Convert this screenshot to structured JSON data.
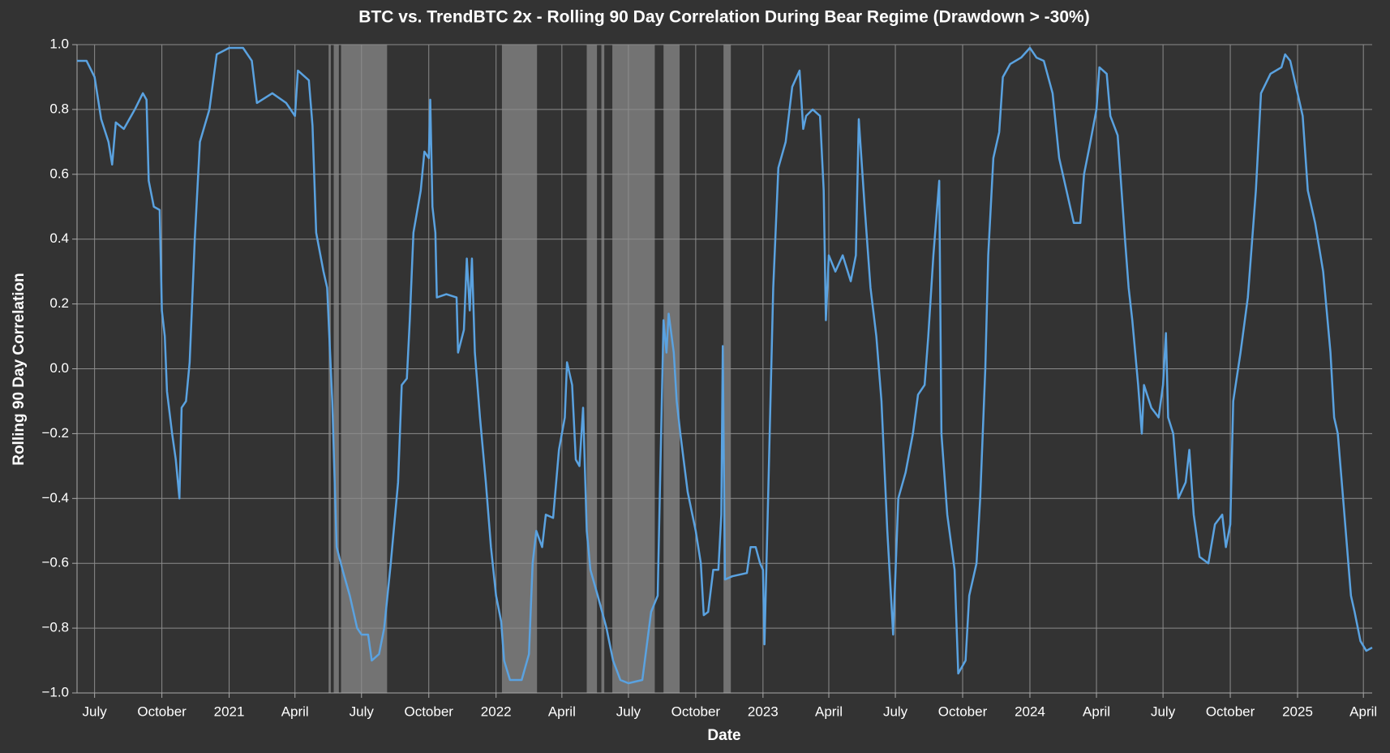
{
  "chart_data": {
    "type": "line",
    "title": "BTC vs. TrendBTC 2x - Rolling 90 Day Correlation During Bear Regime (Drawdown > -30%)",
    "x_label": "Date",
    "y_label": "Rolling 90 Day Correlation",
    "color": "#5aa2e0",
    "shade_color": "#8a8a8a",
    "grid": true,
    "xlim": [
      "2020-06-07",
      "2025-04-13"
    ],
    "xticks": [
      {
        "value": "2020-07-01",
        "label": "July"
      },
      {
        "value": "2020-10-01",
        "label": "October"
      },
      {
        "value": "2021-01-01",
        "label": "2021"
      },
      {
        "value": "2021-04-01",
        "label": "April"
      },
      {
        "value": "2021-07-01",
        "label": "July"
      },
      {
        "value": "2021-10-01",
        "label": "October"
      },
      {
        "value": "2022-01-01",
        "label": "2022"
      },
      {
        "value": "2022-04-01",
        "label": "April"
      },
      {
        "value": "2022-07-01",
        "label": "July"
      },
      {
        "value": "2022-10-01",
        "label": "October"
      },
      {
        "value": "2023-01-01",
        "label": "2023"
      },
      {
        "value": "2023-04-01",
        "label": "April"
      },
      {
        "value": "2023-07-01",
        "label": "July"
      },
      {
        "value": "2023-10-01",
        "label": "October"
      },
      {
        "value": "2024-01-01",
        "label": "2024"
      },
      {
        "value": "2024-04-01",
        "label": "April"
      },
      {
        "value": "2024-07-01",
        "label": "July"
      },
      {
        "value": "2024-10-01",
        "label": "October"
      },
      {
        "value": "2025-01-01",
        "label": "2025"
      },
      {
        "value": "2025-04-01",
        "label": "April"
      }
    ],
    "ylim": [
      -1,
      1
    ],
    "yticks": [
      {
        "value": 1,
        "label": "1.0"
      },
      {
        "value": 0.8,
        "label": "0.8"
      },
      {
        "value": 0.6,
        "label": "0.6"
      },
      {
        "value": 0.4,
        "label": "0.4"
      },
      {
        "value": 0.2,
        "label": "0.2"
      },
      {
        "value": 0,
        "label": "0.0"
      },
      {
        "value": -0.2,
        "label": "−0.2"
      },
      {
        "value": -0.4,
        "label": "−0.4"
      },
      {
        "value": -0.6,
        "label": "−0.6"
      },
      {
        "value": -0.8,
        "label": "−0.8"
      },
      {
        "value": -1,
        "label": "−1.0"
      }
    ],
    "shaded_regions": [
      [
        "2021-05-17",
        "2021-05-20"
      ],
      [
        "2021-05-24",
        "2021-05-31"
      ],
      [
        "2021-06-03",
        "2021-08-05"
      ],
      [
        "2022-01-09",
        "2022-02-26"
      ],
      [
        "2022-05-05",
        "2022-05-19"
      ],
      [
        "2022-05-25",
        "2022-05-29"
      ],
      [
        "2022-06-09",
        "2022-08-06"
      ],
      [
        "2022-08-18",
        "2022-09-09"
      ],
      [
        "2022-11-08",
        "2022-11-18"
      ]
    ],
    "x": [
      "2020-06-07",
      "2020-06-20",
      "2020-07-01",
      "2020-07-10",
      "2020-07-20",
      "2020-07-25",
      "2020-07-30",
      "2020-08-10",
      "2020-08-25",
      "2020-09-05",
      "2020-09-10",
      "2020-09-13",
      "2020-09-20",
      "2020-09-28",
      "2020-10-01",
      "2020-10-05",
      "2020-10-08",
      "2020-10-15",
      "2020-10-20",
      "2020-10-25",
      "2020-10-28",
      "2020-11-03",
      "2020-11-08",
      "2020-11-15",
      "2020-11-22",
      "2020-12-05",
      "2020-12-15",
      "2021-01-01",
      "2021-01-20",
      "2021-02-01",
      "2021-02-08",
      "2021-02-15",
      "2021-03-01",
      "2021-03-20",
      "2021-04-01",
      "2021-04-05",
      "2021-04-15",
      "2021-04-20",
      "2021-04-25",
      "2021-04-30",
      "2021-05-10",
      "2021-05-15",
      "2021-05-22",
      "2021-05-28",
      "2021-06-05",
      "2021-06-15",
      "2021-06-25",
      "2021-07-01",
      "2021-07-10",
      "2021-07-15",
      "2021-07-25",
      "2021-08-01",
      "2021-08-10",
      "2021-08-20",
      "2021-08-25",
      "2021-09-01",
      "2021-09-05",
      "2021-09-10",
      "2021-09-20",
      "2021-09-25",
      "2021-10-01",
      "2021-10-03",
      "2021-10-06",
      "2021-10-10",
      "2021-10-12",
      "2021-10-25",
      "2021-11-08",
      "2021-11-10",
      "2021-11-18",
      "2021-11-22",
      "2021-11-26",
      "2021-11-29",
      "2021-12-03",
      "2021-12-10",
      "2021-12-18",
      "2021-12-25",
      "2022-01-01",
      "2022-01-08",
      "2022-01-12",
      "2022-01-20",
      "2022-02-05",
      "2022-02-15",
      "2022-02-20",
      "2022-02-25",
      "2022-03-05",
      "2022-03-10",
      "2022-03-20",
      "2022-03-28",
      "2022-04-05",
      "2022-04-08",
      "2022-04-15",
      "2022-04-20",
      "2022-04-25",
      "2022-04-30",
      "2022-05-05",
      "2022-05-10",
      "2022-05-20",
      "2022-06-01",
      "2022-06-10",
      "2022-06-20",
      "2022-07-01",
      "2022-07-20",
      "2022-08-01",
      "2022-08-10",
      "2022-08-18",
      "2022-08-22",
      "2022-08-25",
      "2022-09-01",
      "2022-09-05",
      "2022-09-10",
      "2022-09-20",
      "2022-10-01",
      "2022-10-08",
      "2022-10-12",
      "2022-10-18",
      "2022-10-25",
      "2022-11-01",
      "2022-11-05",
      "2022-11-07",
      "2022-11-10",
      "2022-11-20",
      "2022-12-10",
      "2022-12-15",
      "2022-12-22",
      "2022-12-28",
      "2023-01-01",
      "2023-01-03",
      "2023-01-08",
      "2023-01-15",
      "2023-01-22",
      "2023-02-01",
      "2023-02-10",
      "2023-02-20",
      "2023-02-25",
      "2023-03-01",
      "2023-03-10",
      "2023-03-20",
      "2023-03-25",
      "2023-03-28",
      "2023-04-01",
      "2023-04-10",
      "2023-04-20",
      "2023-05-01",
      "2023-05-08",
      "2023-05-12",
      "2023-05-20",
      "2023-05-28",
      "2023-06-05",
      "2023-06-12",
      "2023-06-20",
      "2023-06-28",
      "2023-07-05",
      "2023-07-15",
      "2023-07-25",
      "2023-08-01",
      "2023-08-10",
      "2023-08-15",
      "2023-08-22",
      "2023-08-30",
      "2023-09-02",
      "2023-09-10",
      "2023-09-20",
      "2023-09-25",
      "2023-10-05",
      "2023-10-10",
      "2023-10-20",
      "2023-10-25",
      "2023-11-01",
      "2023-11-05",
      "2023-11-12",
      "2023-11-20",
      "2023-11-25",
      "2023-12-05",
      "2023-12-20",
      "2024-01-01",
      "2024-01-10",
      "2024-01-20",
      "2024-02-01",
      "2024-02-10",
      "2024-02-20",
      "2024-03-01",
      "2024-03-10",
      "2024-03-15",
      "2024-03-22",
      "2024-04-01",
      "2024-04-05",
      "2024-04-15",
      "2024-04-20",
      "2024-04-30",
      "2024-05-10",
      "2024-05-15",
      "2024-05-20",
      "2024-05-28",
      "2024-06-02",
      "2024-06-05",
      "2024-06-15",
      "2024-06-25",
      "2024-07-01",
      "2024-07-05",
      "2024-07-08",
      "2024-07-15",
      "2024-07-22",
      "2024-08-01",
      "2024-08-06",
      "2024-08-12",
      "2024-08-20",
      "2024-09-01",
      "2024-09-10",
      "2024-09-20",
      "2024-09-25",
      "2024-10-01",
      "2024-10-05",
      "2024-10-15",
      "2024-10-25",
      "2024-11-05",
      "2024-11-12",
      "2024-11-25",
      "2024-12-10",
      "2024-12-15",
      "2024-12-22",
      "2025-01-01",
      "2025-01-08",
      "2025-01-15",
      "2025-01-25",
      "2025-02-05",
      "2025-02-15",
      "2025-02-20",
      "2025-02-25",
      "2025-03-05",
      "2025-03-15",
      "2025-03-20",
      "2025-03-28",
      "2025-04-05",
      "2025-04-13"
    ],
    "values": [
      0.95,
      0.95,
      0.9,
      0.77,
      0.7,
      0.63,
      0.76,
      0.74,
      0.8,
      0.85,
      0.83,
      0.58,
      0.5,
      0.49,
      0.18,
      0.1,
      -0.07,
      -0.2,
      -0.28,
      -0.4,
      -0.12,
      -0.1,
      0.02,
      0.4,
      0.7,
      0.8,
      0.97,
      0.99,
      0.99,
      0.95,
      0.82,
      0.83,
      0.85,
      0.82,
      0.78,
      0.92,
      0.9,
      0.89,
      0.75,
      0.42,
      0.3,
      0.25,
      -0.1,
      -0.55,
      -0.62,
      -0.7,
      -0.8,
      -0.82,
      -0.82,
      -0.9,
      -0.88,
      -0.8,
      -0.6,
      -0.35,
      -0.05,
      -0.03,
      0.15,
      0.42,
      0.55,
      0.67,
      0.65,
      0.83,
      0.5,
      0.42,
      0.22,
      0.23,
      0.22,
      0.05,
      0.12,
      0.34,
      0.18,
      0.34,
      0.05,
      -0.15,
      -0.35,
      -0.55,
      -0.7,
      -0.78,
      -0.9,
      -0.96,
      -0.96,
      -0.88,
      -0.6,
      -0.5,
      -0.55,
      -0.45,
      -0.46,
      -0.25,
      -0.15,
      0.02,
      -0.05,
      -0.28,
      -0.3,
      -0.12,
      -0.5,
      -0.62,
      -0.7,
      -0.8,
      -0.9,
      -0.96,
      -0.97,
      -0.96,
      -0.75,
      -0.7,
      0.15,
      0.05,
      0.17,
      0.05,
      -0.1,
      -0.2,
      -0.38,
      -0.5,
      -0.6,
      -0.76,
      -0.75,
      -0.62,
      -0.62,
      -0.45,
      0.07,
      -0.65,
      -0.64,
      -0.63,
      -0.55,
      -0.55,
      -0.6,
      -0.62,
      -0.85,
      -0.4,
      0.25,
      0.62,
      0.7,
      0.87,
      0.92,
      0.74,
      0.78,
      0.8,
      0.78,
      0.55,
      0.15,
      0.35,
      0.3,
      0.35,
      0.27,
      0.35,
      0.77,
      0.5,
      0.25,
      0.1,
      -0.1,
      -0.5,
      -0.82,
      -0.4,
      -0.32,
      -0.2,
      -0.08,
      -0.05,
      0.1,
      0.35,
      0.58,
      -0.2,
      -0.45,
      -0.62,
      -0.94,
      -0.9,
      -0.7,
      -0.6,
      -0.4,
      0.0,
      0.35,
      0.65,
      0.73,
      0.9,
      0.94,
      0.96,
      0.99,
      0.96,
      0.95,
      0.85,
      0.65,
      0.55,
      0.45,
      0.45,
      0.6,
      0.68,
      0.8,
      0.93,
      0.91,
      0.78,
      0.72,
      0.4,
      0.25,
      0.15,
      -0.05,
      -0.2,
      -0.05,
      -0.12,
      -0.15,
      -0.05,
      0.11,
      -0.15,
      -0.2,
      -0.4,
      -0.35,
      -0.25,
      -0.45,
      -0.58,
      -0.6,
      -0.48,
      -0.45,
      -0.55,
      -0.48,
      -0.1,
      0.05,
      0.22,
      0.55,
      0.85,
      0.91,
      0.93,
      0.97,
      0.95,
      0.85,
      0.78,
      0.55,
      0.45,
      0.3,
      0.05,
      -0.15,
      -0.2,
      -0.42,
      -0.7,
      -0.75,
      -0.84,
      -0.87,
      -0.86
    ]
  }
}
